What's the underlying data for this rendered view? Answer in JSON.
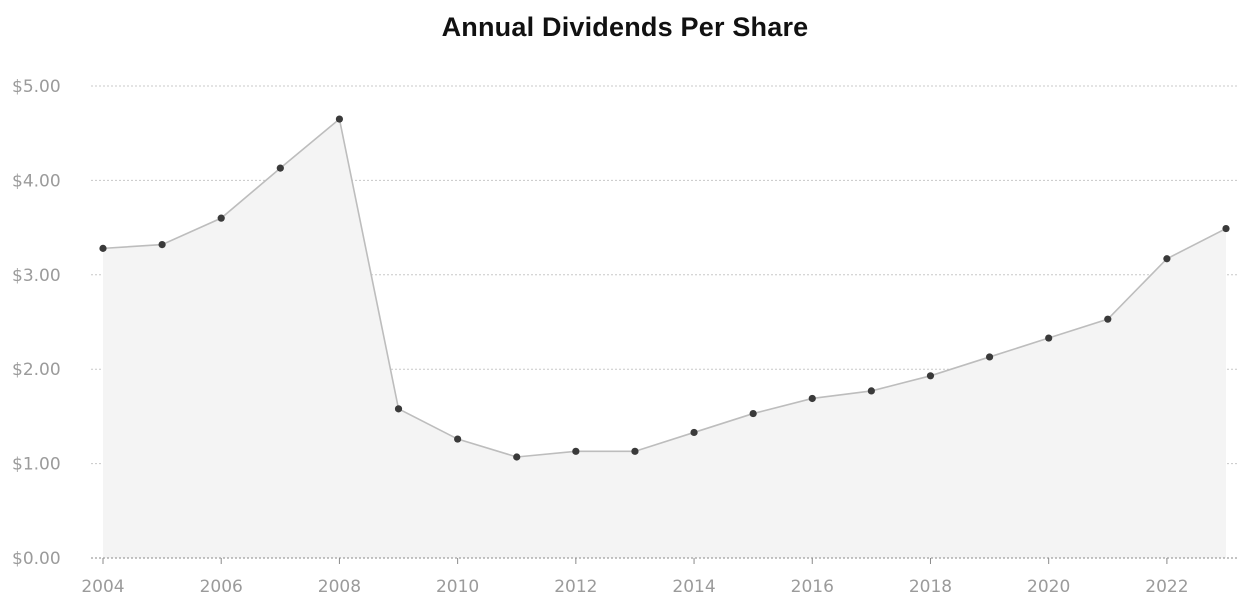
{
  "chart_data": {
    "type": "area",
    "title": "Annual Dividends Per Share",
    "xlabel": "",
    "ylabel": "",
    "x": [
      2004,
      2005,
      2006,
      2007,
      2008,
      2009,
      2010,
      2011,
      2012,
      2013,
      2014,
      2015,
      2016,
      2017,
      2018,
      2019,
      2020,
      2021,
      2022,
      2023
    ],
    "series": [
      {
        "values": [
          3.28,
          3.32,
          3.6,
          4.13,
          4.65,
          1.58,
          1.26,
          1.07,
          1.13,
          1.13,
          1.33,
          1.53,
          1.69,
          1.77,
          1.93,
          2.13,
          2.33,
          2.53,
          3.17,
          3.49
        ]
      }
    ],
    "xlim": [
      2004,
      2023
    ],
    "ylim": [
      0,
      5
    ],
    "x_ticks": [
      "2004",
      "2006",
      "2008",
      "2010",
      "2012",
      "2014",
      "2016",
      "2018",
      "2020",
      "2022"
    ],
    "y_ticks": [
      "$0.00",
      "$1.00",
      "$2.00",
      "$3.00",
      "$4.00",
      "$5.00"
    ],
    "grid": true,
    "legend": "none",
    "colors": {
      "line": "#bdbdbd",
      "fill": "#f4f4f4",
      "marker": "#3a3a3a",
      "grid": "#c8c8c8",
      "tick_text": "#9b9b9b",
      "title": "#111111"
    }
  }
}
